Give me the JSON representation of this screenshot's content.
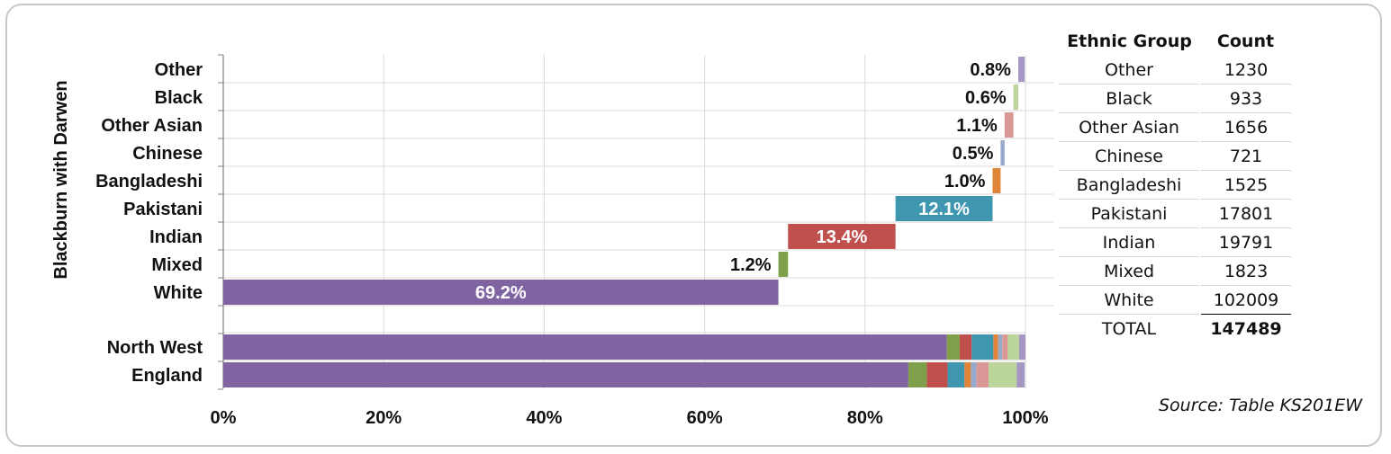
{
  "chart_data": {
    "type": "bar",
    "stacked": true,
    "orientation": "horizontal",
    "group_label": "Blackburn with Darwen",
    "categories": [
      "Other",
      "Black",
      "Other Asian",
      "Chinese",
      "Bangladeshi",
      "Pakistani",
      "Indian",
      "Mixed",
      "White"
    ],
    "waterfall": [
      {
        "name": "Other",
        "value": 0.8,
        "label": "0.8%",
        "color": "#a497c4"
      },
      {
        "name": "Black",
        "value": 0.6,
        "label": "0.6%",
        "color": "#bcd59a"
      },
      {
        "name": "Other Asian",
        "value": 1.1,
        "label": "1.1%",
        "color": "#d99795"
      },
      {
        "name": "Chinese",
        "value": 0.5,
        "label": "0.5%",
        "color": "#95a9cd"
      },
      {
        "name": "Bangladeshi",
        "value": 1.0,
        "label": "1.0%",
        "color": "#e0843a"
      },
      {
        "name": "Pakistani",
        "value": 12.1,
        "label": "12.1%",
        "color": "#3e97ae"
      },
      {
        "name": "Indian",
        "value": 13.4,
        "label": "13.4%",
        "color": "#c0504d"
      },
      {
        "name": "Mixed",
        "value": 1.2,
        "label": "1.2%",
        "color": "#7f9f4a"
      },
      {
        "name": "White",
        "value": 69.2,
        "label": "69.2%",
        "color": "#8064a2"
      }
    ],
    "comparison_series_order": [
      "White",
      "Mixed",
      "Indian",
      "Pakistani",
      "Bangladeshi",
      "Chinese",
      "Other Asian",
      "Black",
      "Other"
    ],
    "comparison": [
      {
        "name": "North West",
        "values": [
          90.2,
          1.6,
          1.5,
          2.7,
          0.6,
          0.5,
          0.7,
          1.4,
          0.8
        ]
      },
      {
        "name": "England",
        "values": [
          85.4,
          2.3,
          2.6,
          2.1,
          0.8,
          0.7,
          1.5,
          3.5,
          1.0
        ]
      }
    ],
    "x_ticks": [
      "0%",
      "20%",
      "40%",
      "60%",
      "80%",
      "100%"
    ],
    "xlim": [
      0,
      100
    ],
    "grid": true
  },
  "table": {
    "headers": [
      "Ethnic Group",
      "Count"
    ],
    "rows": [
      {
        "group": "Other",
        "count": "1230"
      },
      {
        "group": "Black",
        "count": "933"
      },
      {
        "group": "Other Asian",
        "count": "1656"
      },
      {
        "group": "Chinese",
        "count": "721"
      },
      {
        "group": "Bangladeshi",
        "count": "1525"
      },
      {
        "group": "Pakistani",
        "count": "17801"
      },
      {
        "group": "Indian",
        "count": "19791"
      },
      {
        "group": "Mixed",
        "count": "1823"
      },
      {
        "group": "White",
        "count": "102009"
      }
    ],
    "total_label": "TOTAL",
    "total_count": "147489"
  },
  "source": "Source: Table KS201EW"
}
